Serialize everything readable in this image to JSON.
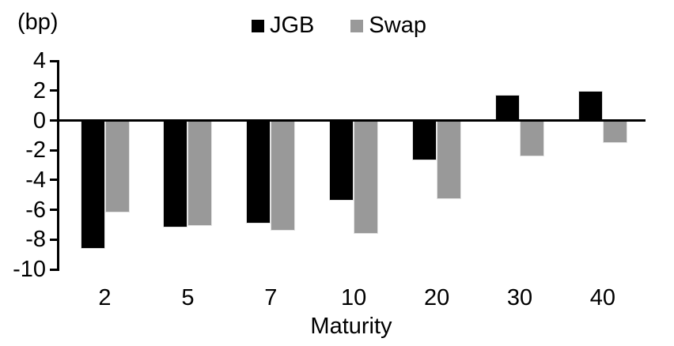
{
  "chart_data": {
    "type": "bar",
    "title": "",
    "unit_label": "(bp)",
    "xlabel": "Maturity",
    "categories": [
      "2",
      "5",
      "7",
      "10",
      "20",
      "30",
      "40"
    ],
    "series": [
      {
        "name": "JGB",
        "color": "#000000",
        "values": [
          -8.6,
          -7.2,
          -6.9,
          -5.4,
          -2.7,
          1.7,
          2.0
        ]
      },
      {
        "name": "Swap",
        "color": "#999999",
        "values": [
          -6.2,
          -7.1,
          -7.4,
          -7.6,
          -5.3,
          -2.4,
          -1.5
        ]
      }
    ],
    "yticks": [
      4,
      2,
      0,
      -2,
      -4,
      -6,
      -8,
      -10
    ],
    "ylim": [
      -10,
      4
    ],
    "grid": false,
    "legend_position": "top-center",
    "background_color": "#ffffff",
    "text_color": "#000000"
  }
}
